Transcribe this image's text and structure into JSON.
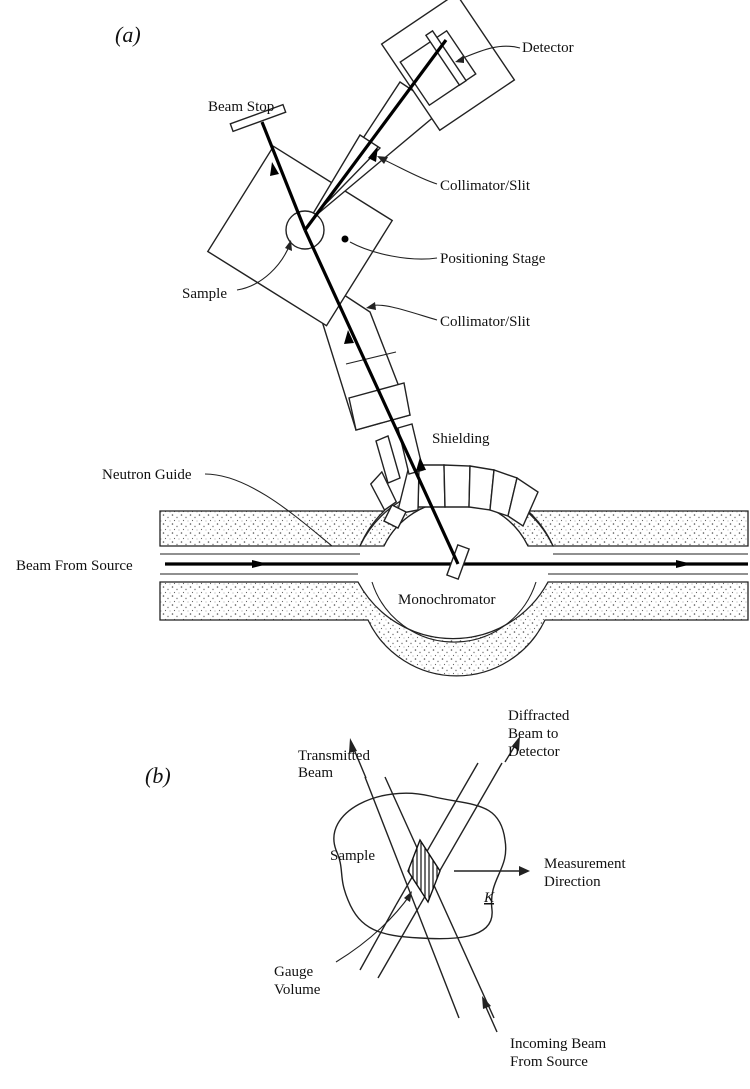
{
  "panel_a": {
    "label": "(a)",
    "labels": {
      "detector": "Detector",
      "beam_stop": "Beam Stop",
      "collimator_top": "Collimator/Slit",
      "positioning_stage": "Positioning Stage",
      "sample": "Sample",
      "collimator_bottom": "Collimator/Slit",
      "shielding": "Shielding",
      "neutron_guide": "Neutron Guide",
      "beam_from_source": "Beam From Source",
      "monochromator": "Monochromator"
    }
  },
  "panel_b": {
    "label": "(b)",
    "labels": {
      "diffracted_beam": [
        "Diffracted",
        "Beam to",
        "Detector"
      ],
      "transmitted_beam": [
        "Transmitted",
        "Beam"
      ],
      "sample": "Sample",
      "measurement_direction": [
        "Measurement",
        "Direction"
      ],
      "k_vector": "K",
      "gauge_volume": [
        "Gauge",
        "Volume"
      ],
      "incoming_beam": [
        "Incoming Beam",
        "From Source"
      ]
    }
  }
}
